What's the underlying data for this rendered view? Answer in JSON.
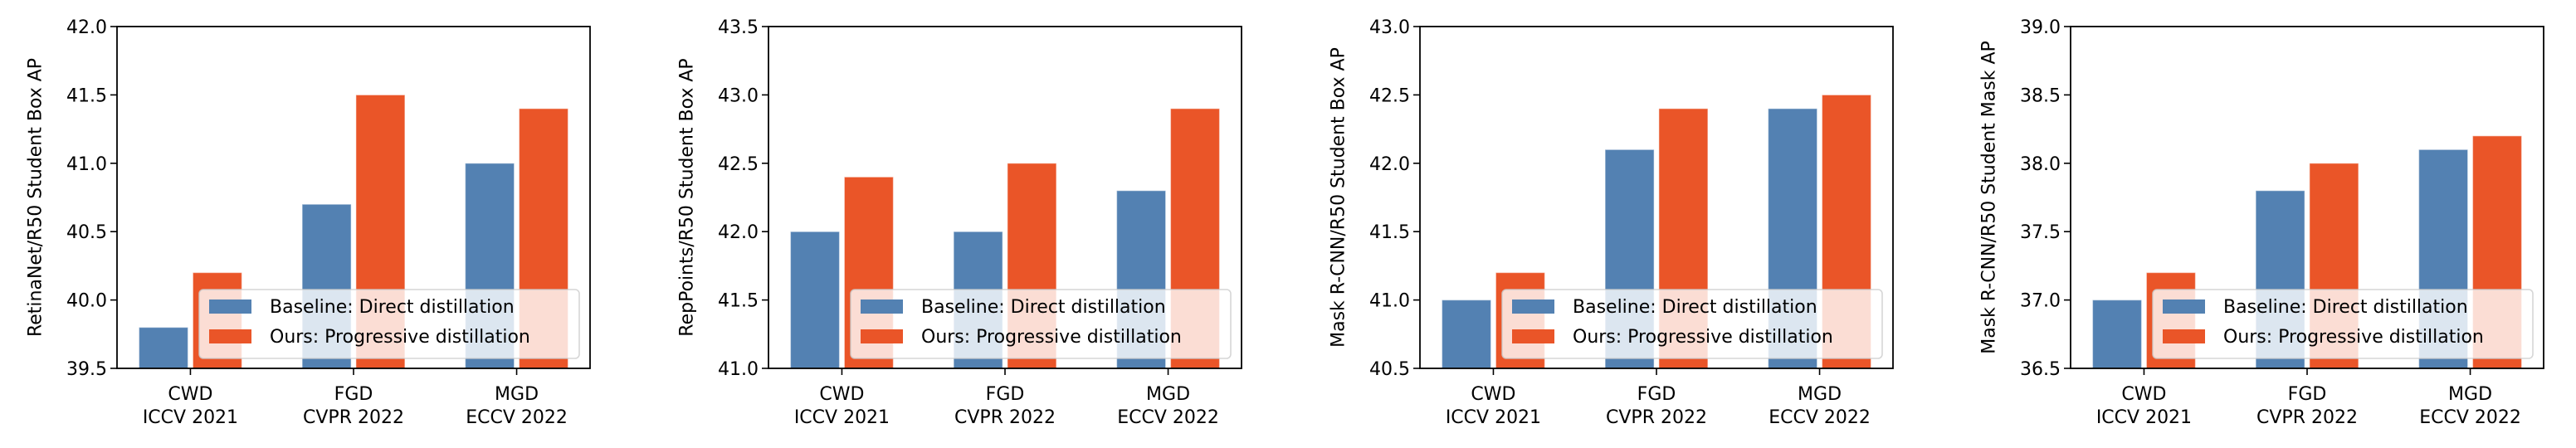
{
  "figure": {
    "legend_entries": [
      {
        "label": "Baseline: Direct distillation",
        "color": "#5381b2"
      },
      {
        "label": "Ours: Progressive distillation",
        "color": "#ea5528"
      }
    ]
  },
  "chart_data": [
    {
      "type": "bar",
      "title": "",
      "xlabel": "",
      "ylabel": "RetinaNet/R50 Student Box AP",
      "categories": [
        "CWD\nICCV 2021",
        "FGD\nCVPR 2022",
        "MGD\nECCV 2022"
      ],
      "category_lines": [
        [
          "CWD",
          "ICCV 2021"
        ],
        [
          "FGD",
          "CVPR 2022"
        ],
        [
          "MGD",
          "ECCV 2022"
        ]
      ],
      "series": [
        {
          "name": "Baseline: Direct distillation",
          "color": "#5381b2",
          "values": [
            39.8,
            40.7,
            41.0
          ]
        },
        {
          "name": "Ours: Progressive distillation",
          "color": "#ea5528",
          "values": [
            40.2,
            41.5,
            41.4
          ]
        }
      ],
      "ylim": [
        39.5,
        42.0
      ],
      "yticks": [
        "39.5",
        "40.0",
        "40.5",
        "41.0",
        "41.5",
        "42.0"
      ],
      "grid": false,
      "legend_position": "lower-right"
    },
    {
      "type": "bar",
      "title": "",
      "xlabel": "",
      "ylabel": "RepPoints/R50 Student Box AP",
      "categories": [
        "CWD\nICCV 2021",
        "FGD\nCVPR 2022",
        "MGD\nECCV 2022"
      ],
      "category_lines": [
        [
          "CWD",
          "ICCV 2021"
        ],
        [
          "FGD",
          "CVPR 2022"
        ],
        [
          "MGD",
          "ECCV 2022"
        ]
      ],
      "series": [
        {
          "name": "Baseline: Direct distillation",
          "color": "#5381b2",
          "values": [
            42.0,
            42.0,
            42.3
          ]
        },
        {
          "name": "Ours: Progressive distillation",
          "color": "#ea5528",
          "values": [
            42.4,
            42.5,
            42.9
          ]
        }
      ],
      "ylim": [
        41.0,
        43.5
      ],
      "yticks": [
        "41.0",
        "41.5",
        "42.0",
        "42.5",
        "43.0",
        "43.5"
      ],
      "grid": false,
      "legend_position": "lower-right"
    },
    {
      "type": "bar",
      "title": "",
      "xlabel": "",
      "ylabel": "Mask R-CNN/R50 Student Box AP",
      "categories": [
        "CWD\nICCV 2021",
        "FGD\nCVPR 2022",
        "MGD\nECCV 2022"
      ],
      "category_lines": [
        [
          "CWD",
          "ICCV 2021"
        ],
        [
          "FGD",
          "CVPR 2022"
        ],
        [
          "MGD",
          "ECCV 2022"
        ]
      ],
      "series": [
        {
          "name": "Baseline: Direct distillation",
          "color": "#5381b2",
          "values": [
            41.0,
            42.1,
            42.4
          ]
        },
        {
          "name": "Ours: Progressive distillation",
          "color": "#ea5528",
          "values": [
            41.2,
            42.4,
            42.5
          ]
        }
      ],
      "ylim": [
        40.5,
        43.0
      ],
      "yticks": [
        "40.5",
        "41.0",
        "41.5",
        "42.0",
        "42.5",
        "43.0"
      ],
      "grid": false,
      "legend_position": "lower-right"
    },
    {
      "type": "bar",
      "title": "",
      "xlabel": "",
      "ylabel": "Mask R-CNN/R50 Student Mask AP",
      "categories": [
        "CWD\nICCV 2021",
        "FGD\nCVPR 2022",
        "MGD\nECCV 2022"
      ],
      "category_lines": [
        [
          "CWD",
          "ICCV 2021"
        ],
        [
          "FGD",
          "CVPR 2022"
        ],
        [
          "MGD",
          "ECCV 2022"
        ]
      ],
      "series": [
        {
          "name": "Baseline: Direct distillation",
          "color": "#5381b2",
          "values": [
            37.0,
            37.8,
            38.1
          ]
        },
        {
          "name": "Ours: Progressive distillation",
          "color": "#ea5528",
          "values": [
            37.2,
            38.0,
            38.2
          ]
        }
      ],
      "ylim": [
        36.5,
        39.0
      ],
      "yticks": [
        "36.5",
        "37.0",
        "37.5",
        "38.0",
        "38.5",
        "39.0"
      ],
      "grid": false,
      "legend_position": "lower-right"
    }
  ]
}
